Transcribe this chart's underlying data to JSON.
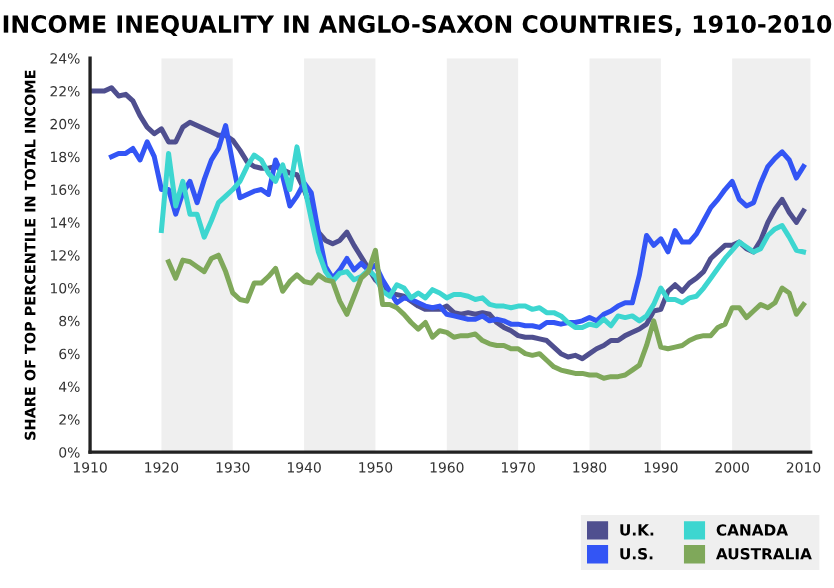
{
  "chart_data": {
    "type": "line",
    "title": "INCOME INEQUALITY IN ANGLO-SAXON COUNTRIES, 1910-2010",
    "ylabel": "SHARE OF TOP PERCENTILE IN TOTAL INCOME",
    "x": [
      1910,
      1911,
      1912,
      1913,
      1914,
      1915,
      1916,
      1917,
      1918,
      1919,
      1920,
      1921,
      1922,
      1923,
      1924,
      1925,
      1926,
      1927,
      1928,
      1929,
      1930,
      1931,
      1932,
      1933,
      1934,
      1935,
      1936,
      1937,
      1938,
      1939,
      1940,
      1941,
      1942,
      1943,
      1944,
      1945,
      1946,
      1947,
      1948,
      1949,
      1950,
      1951,
      1952,
      1953,
      1954,
      1955,
      1956,
      1957,
      1958,
      1959,
      1960,
      1961,
      1962,
      1963,
      1964,
      1965,
      1966,
      1967,
      1968,
      1969,
      1970,
      1971,
      1972,
      1973,
      1974,
      1975,
      1976,
      1977,
      1978,
      1979,
      1980,
      1981,
      1982,
      1983,
      1984,
      1985,
      1986,
      1987,
      1988,
      1989,
      1990,
      1991,
      1992,
      1993,
      1994,
      1995,
      1996,
      1997,
      1998,
      1999,
      2000,
      2001,
      2002,
      2003,
      2004,
      2005,
      2006,
      2007,
      2008,
      2009,
      2010
    ],
    "series": [
      {
        "name": "U.K.",
        "color": "#4f4f8f",
        "values": [
          22,
          22,
          22,
          22.2,
          21.7,
          21.8,
          21.4,
          20.5,
          19.8,
          19.4,
          19.7,
          18.9,
          18.9,
          19.8,
          20.1,
          19.9,
          19.7,
          19.5,
          19.3,
          19.3,
          19.0,
          18.4,
          17.7,
          17.4,
          17.3,
          17.3,
          17.4,
          17.2,
          17.0,
          16.9,
          16.0,
          14.8,
          13.4,
          12.9,
          12.7,
          12.9,
          13.4,
          12.6,
          11.9,
          11.2,
          10.5,
          10.1,
          9.7,
          9.6,
          9.5,
          9.2,
          8.9,
          8.7,
          8.7,
          8.7,
          8.9,
          8.5,
          8.4,
          8.5,
          8.4,
          8.5,
          8.4,
          7.9,
          7.6,
          7.4,
          7.1,
          7.0,
          7.0,
          6.9,
          6.8,
          6.4,
          6.0,
          5.8,
          5.9,
          5.7,
          6.0,
          6.3,
          6.5,
          6.8,
          6.8,
          7.1,
          7.3,
          7.5,
          7.8,
          8.6,
          8.7,
          9.8,
          10.2,
          9.8,
          10.3,
          10.6,
          11.0,
          11.8,
          12.2,
          12.6,
          12.6,
          12.8,
          12.4,
          12.2,
          12.9,
          14.0,
          14.8,
          15.4,
          14.6,
          14.0,
          14.7
        ]
      },
      {
        "name": "U.S.",
        "color": "#3355f5",
        "values": [
          null,
          null,
          null,
          18.0,
          18.2,
          18.2,
          18.5,
          17.8,
          18.9,
          18.0,
          16.0,
          16.0,
          14.5,
          15.8,
          16.5,
          15.2,
          16.6,
          17.8,
          18.5,
          19.9,
          17.6,
          15.5,
          15.7,
          15.9,
          16.0,
          15.7,
          17.8,
          16.8,
          15.0,
          15.6,
          16.4,
          15.8,
          13.4,
          11.3,
          10.6,
          11.1,
          11.8,
          11.1,
          11.5,
          11.1,
          11.4,
          10.5,
          9.8,
          9.1,
          9.4,
          9.3,
          9.1,
          8.9,
          8.8,
          8.9,
          8.4,
          8.3,
          8.2,
          8.1,
          8.1,
          8.3,
          8.0,
          8.1,
          8.0,
          7.8,
          7.8,
          7.7,
          7.7,
          7.6,
          7.9,
          7.9,
          7.8,
          7.9,
          7.9,
          8.0,
          8.2,
          8.0,
          8.4,
          8.6,
          8.9,
          9.1,
          9.1,
          10.8,
          13.2,
          12.6,
          13.0,
          12.2,
          13.5,
          12.8,
          12.8,
          13.3,
          14.1,
          14.9,
          15.4,
          16.0,
          16.5,
          15.4,
          15.0,
          15.2,
          16.4,
          17.4,
          17.9,
          18.3,
          17.8,
          16.7,
          17.4
        ]
      },
      {
        "name": "CANADA",
        "color": "#3dd6d0",
        "values": [
          null,
          null,
          null,
          null,
          null,
          null,
          null,
          null,
          null,
          null,
          13.5,
          18.2,
          15.0,
          16.5,
          14.5,
          14.5,
          13.1,
          14.1,
          15.2,
          15.6,
          16.0,
          16.5,
          17.4,
          18.1,
          17.8,
          17.0,
          16.5,
          17.5,
          16.0,
          18.6,
          16.3,
          14.2,
          12.2,
          11.0,
          10.4,
          10.9,
          11.0,
          10.5,
          10.7,
          11.1,
          10.7,
          9.8,
          9.5,
          10.2,
          10.0,
          9.4,
          9.7,
          9.4,
          9.9,
          9.7,
          9.4,
          9.6,
          9.6,
          9.5,
          9.3,
          9.4,
          9.0,
          8.9,
          8.9,
          8.8,
          8.9,
          8.9,
          8.7,
          8.8,
          8.5,
          8.5,
          8.3,
          7.9,
          7.6,
          7.6,
          7.8,
          7.7,
          8.1,
          7.7,
          8.3,
          8.2,
          8.3,
          8.0,
          8.3,
          9.0,
          10.0,
          9.3,
          9.3,
          9.1,
          9.4,
          9.5,
          10.0,
          10.6,
          11.2,
          11.8,
          12.3,
          12.8,
          12.5,
          12.2,
          12.4,
          13.2,
          13.6,
          13.8,
          13.1,
          12.3,
          12.2
        ]
      },
      {
        "name": "AUSTRALIA",
        "color": "#7fa85a",
        "values": [
          null,
          null,
          null,
          null,
          null,
          null,
          null,
          null,
          null,
          null,
          null,
          11.6,
          10.6,
          11.7,
          11.6,
          11.3,
          11.0,
          11.8,
          12.0,
          11.0,
          9.7,
          9.3,
          9.2,
          10.3,
          10.3,
          10.7,
          11.2,
          9.8,
          10.4,
          10.8,
          10.4,
          10.3,
          10.8,
          10.5,
          10.4,
          9.2,
          8.4,
          9.5,
          10.6,
          11.0,
          12.3,
          9.0,
          9.0,
          8.8,
          8.4,
          7.9,
          7.5,
          7.9,
          7.0,
          7.4,
          7.3,
          7.0,
          7.1,
          7.1,
          7.2,
          6.8,
          6.6,
          6.5,
          6.5,
          6.3,
          6.3,
          6.0,
          5.9,
          6.0,
          5.6,
          5.2,
          5.0,
          4.9,
          4.8,
          4.8,
          4.7,
          4.7,
          4.5,
          4.6,
          4.6,
          4.7,
          5.0,
          5.3,
          6.5,
          8.0,
          6.4,
          6.3,
          6.4,
          6.5,
          6.8,
          7.0,
          7.1,
          7.1,
          7.6,
          7.8,
          8.8,
          8.8,
          8.2,
          8.6,
          9.0,
          8.8,
          9.1,
          10.0,
          9.7,
          8.4,
          9.0
        ]
      }
    ],
    "xlim": [
      1910,
      2011
    ],
    "xticks": [
      1910,
      1920,
      1930,
      1940,
      1950,
      1960,
      1970,
      1980,
      1990,
      2000,
      2010
    ],
    "ylim": [
      0,
      24
    ],
    "yticks": [
      {
        "value": 0,
        "label": "0%"
      },
      {
        "value": 2,
        "label": "2%"
      },
      {
        "value": 4,
        "label": "4%"
      },
      {
        "value": 6,
        "label": "6%"
      },
      {
        "value": 8,
        "label": "8%"
      },
      {
        "value": 10,
        "label": "10%"
      },
      {
        "value": 12,
        "label": "12%"
      },
      {
        "value": 14,
        "label": "14%"
      },
      {
        "value": 16,
        "label": "16%"
      },
      {
        "value": 18,
        "label": "18%"
      },
      {
        "value": 20,
        "label": "20%"
      },
      {
        "value": 22,
        "label": "22%"
      },
      {
        "value": 24,
        "label": "24%"
      }
    ],
    "bands": [
      {
        "axis": "x",
        "from": 1920,
        "to": 1930,
        "color": "#efefef"
      },
      {
        "axis": "x",
        "from": 1940,
        "to": 1950,
        "color": "#efefef"
      },
      {
        "axis": "x",
        "from": 1960,
        "to": 1970,
        "color": "#efefef"
      },
      {
        "axis": "x",
        "from": 1980,
        "to": 1990,
        "color": "#efefef"
      },
      {
        "axis": "x",
        "from": 2000,
        "to": 2011,
        "color": "#efefef"
      }
    ],
    "grid": false,
    "legend": "bottom right",
    "marker": "none",
    "line_style": "solid"
  }
}
